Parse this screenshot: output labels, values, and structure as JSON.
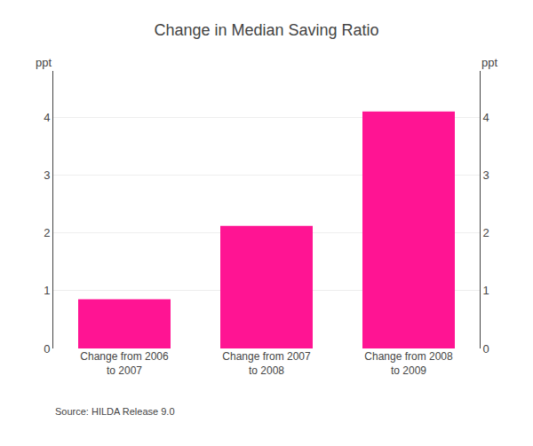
{
  "chart_data": {
    "type": "bar",
    "title": "Change in Median Saving Ratio",
    "categories": [
      "Change from 2006\nto 2007",
      "Change from 2007\nto 2008",
      "Change from 2008\nto 2009"
    ],
    "values": [
      0.85,
      2.12,
      4.1
    ],
    "color": "#FF1493",
    "ylabel": "ppt",
    "y2label": "ppt",
    "annotations": [
      "Source: HILDA Release 9.0"
    ],
    "ylim": [
      0,
      4.8
    ],
    "yticks": [
      0,
      1,
      2,
      3,
      4
    ],
    "y2lim": [
      0,
      4.8
    ],
    "y2ticks": [
      0,
      1,
      2,
      3,
      4
    ],
    "grid": true
  }
}
